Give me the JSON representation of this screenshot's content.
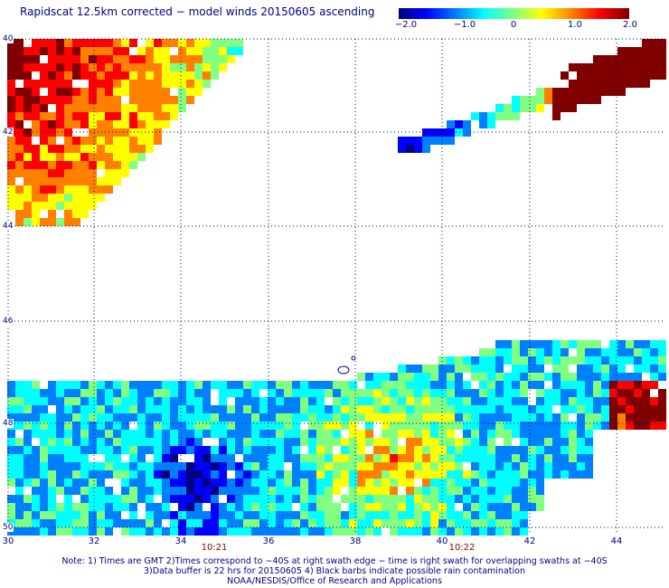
{
  "title": "Rapidscat 12.5km corrected − model winds 20150605 ascending",
  "colorbar": {
    "ticks": [
      "−2.0",
      "−1.0",
      "0",
      "1.0",
      "2.0"
    ],
    "range": [
      -2.0,
      2.0
    ],
    "colors": [
      "#000083",
      "#0000ff",
      "#0080ff",
      "#00ffff",
      "#80ff80",
      "#ffff00",
      "#ff8000",
      "#ff0000",
      "#800000"
    ]
  },
  "axes": {
    "x_ticks": [
      "30",
      "32",
      "34",
      "36",
      "38",
      "40",
      "42",
      "44"
    ],
    "y_ticks": [
      "40",
      "42",
      "44",
      "46",
      "48",
      "50"
    ],
    "x_range": [
      30,
      45.2
    ],
    "y_range": [
      40,
      50
    ],
    "grid": "dotted"
  },
  "times": [
    "10:21",
    "10:22"
  ],
  "notes": [
    "Note: 1) Times are GMT 2)Times correspond to −40S at right swath edge − time is right swath for overlapping swaths at −40S",
    "3)Data buffer is 22 hrs for 20150605 4) Black barbs indicate possible rain contamination",
    "NOAA/NESDIS/Office of Research and Applications"
  ]
}
